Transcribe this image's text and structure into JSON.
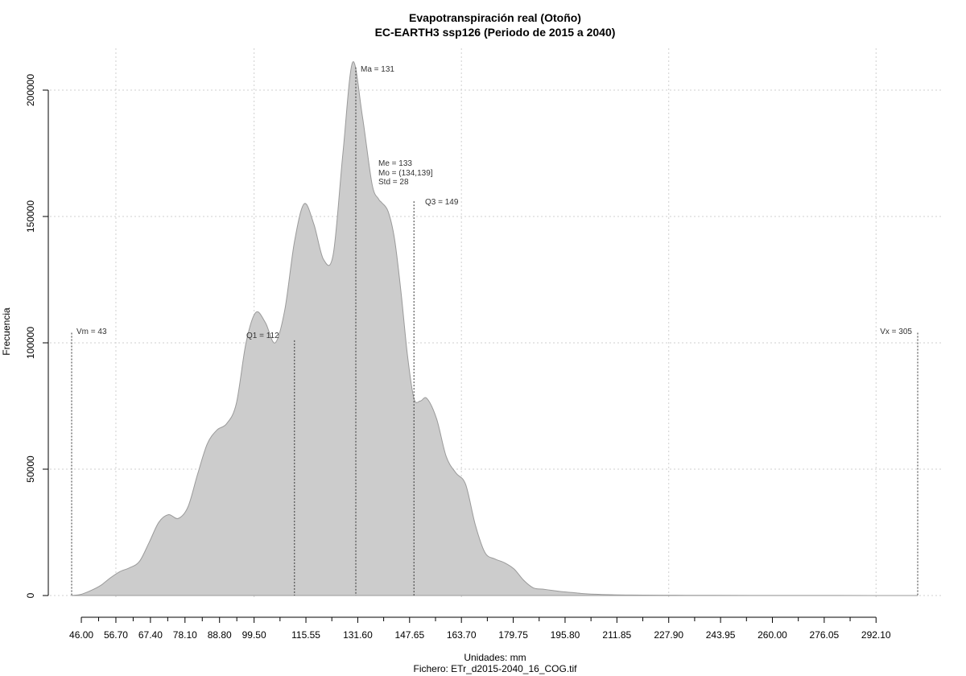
{
  "chart_data": {
    "type": "area",
    "title": "Evapotranspiración real (Otoño)",
    "subtitle": "EC-EARTH3 ssp126 (Periodo de 2015 a 2040)",
    "xlabel": "Unidades: mm",
    "ylabel": "Frecuencia",
    "footer": "Fichero: ETr_d2015-2040_16_COG.tif",
    "xlim": [
      43,
      305
    ],
    "ylim": [
      0,
      212000
    ],
    "grid": true,
    "fill_color": "#cccccc",
    "x_ticks": [
      46.0,
      56.7,
      67.4,
      78.1,
      88.8,
      99.5,
      115.55,
      131.6,
      147.65,
      163.7,
      179.75,
      195.8,
      211.85,
      227.9,
      243.95,
      260.0,
      276.05,
      292.1
    ],
    "x_tick_labels": [
      "46.00",
      "56.70",
      "67.40",
      "78.10",
      "88.80",
      "99.50",
      "115.55",
      "131.60",
      "147.65",
      "163.70",
      "179.75",
      "195.80",
      "211.85",
      "227.90",
      "243.95",
      "260.00",
      "276.05",
      "292.10"
    ],
    "y_ticks": [
      0,
      50000,
      100000,
      150000,
      200000
    ],
    "y_tick_labels": [
      "0",
      "50000",
      "100000",
      "150000",
      "200000"
    ],
    "x": [
      43,
      46,
      49,
      52,
      55,
      58,
      61,
      64,
      67,
      70,
      73,
      76,
      79,
      82,
      85,
      88,
      91,
      94,
      97,
      100,
      103,
      106,
      109,
      112,
      115,
      118,
      121,
      124,
      127,
      130,
      133,
      136,
      138,
      139,
      141,
      143,
      145,
      147,
      149,
      151,
      153,
      156,
      159,
      162,
      165,
      168,
      171,
      174,
      177,
      180,
      183,
      186,
      189,
      192,
      195,
      198,
      201,
      205,
      210,
      215,
      220,
      230,
      240,
      260,
      280,
      305
    ],
    "y": [
      0,
      500,
      2000,
      4000,
      7000,
      9500,
      11000,
      13500,
      21000,
      29000,
      32000,
      30500,
      35000,
      48000,
      60000,
      65500,
      68000,
      76000,
      100000,
      112000,
      108000,
      100000,
      113000,
      140000,
      155000,
      147000,
      133000,
      135000,
      175000,
      211000,
      190000,
      163000,
      157000,
      155500,
      152000,
      141000,
      120000,
      95000,
      78000,
      77000,
      78000,
      70000,
      55000,
      48500,
      44000,
      28000,
      17000,
      14500,
      13000,
      10500,
      6000,
      3000,
      2500,
      2000,
      1500,
      1200,
      800,
      500,
      300,
      200,
      150,
      100,
      80,
      50,
      30,
      0
    ],
    "annotations": {
      "min": "Vm = 43",
      "q1": "Q1 = 112",
      "mean": "Ma = 131",
      "median": "Me = 133",
      "mode": "Mo = (134,139]",
      "std": "Std = 28",
      "q3": "Q3 = 149",
      "max": "Vx = 305"
    },
    "markers": [
      {
        "key": "min",
        "x": 43,
        "ytop": 104000
      },
      {
        "key": "q1",
        "x": 112,
        "ytop": 101000
      },
      {
        "key": "mean",
        "x": 131,
        "ytop": 209000
      },
      {
        "key": "q3",
        "x": 149,
        "ytop": 156000
      },
      {
        "key": "max",
        "x": 305,
        "ytop": 104000
      }
    ]
  }
}
